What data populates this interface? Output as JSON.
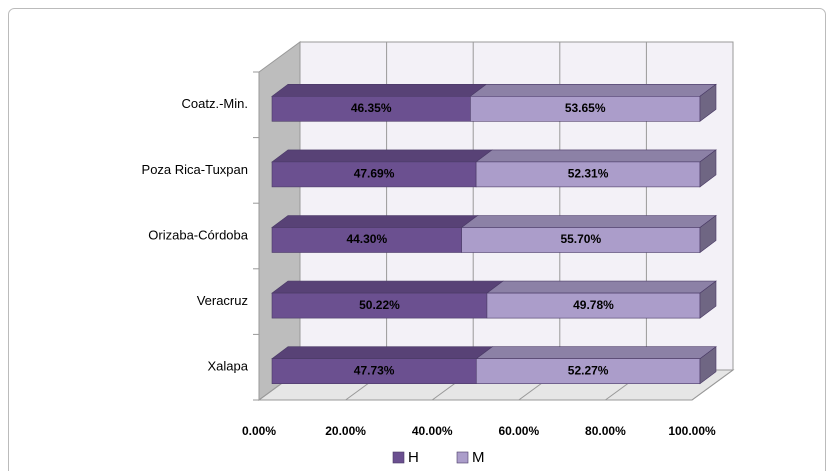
{
  "chart_data": {
    "type": "bar3d_stacked_h",
    "categories": [
      "Coatz.-Min.",
      "Poza Rica-Tuxpan",
      "Orizaba-Córdoba",
      "Veracruz",
      "Xalapa"
    ],
    "series": [
      {
        "name": "H",
        "color": "#6b5090",
        "values": [
          46.35,
          47.69,
          44.3,
          50.22,
          47.73
        ],
        "value_labels": [
          "46.35%",
          "47.69%",
          "44.30%",
          "50.22%",
          "47.73%"
        ]
      },
      {
        "name": "M",
        "color": "#ab9dca",
        "values": [
          53.65,
          52.31,
          55.7,
          49.78,
          52.27
        ],
        "value_labels": [
          "53.65%",
          "52.31%",
          "55.70%",
          "49.78%",
          "52.27%"
        ]
      }
    ],
    "xlim": [
      0,
      100
    ],
    "xticks": [
      {
        "value": 0,
        "label": "0.00%"
      },
      {
        "value": 20,
        "label": "20.00%"
      },
      {
        "value": 40,
        "label": "40.00%"
      },
      {
        "value": 60,
        "label": "60.00%"
      },
      {
        "value": 80,
        "label": "80.00%"
      },
      {
        "value": 100,
        "label": "100.00%"
      }
    ],
    "grid": true,
    "legend": "bottom"
  }
}
